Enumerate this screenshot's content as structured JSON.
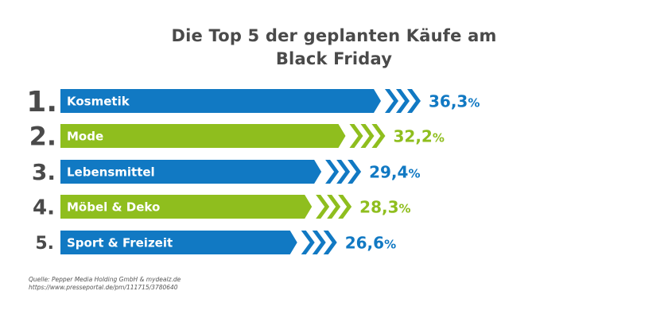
{
  "title_line1": "Die Top 5 der geplanten Käufe am",
  "title_line2": "Black Friday",
  "chart_data": {
    "type": "bar",
    "orientation": "horizontal",
    "title": "Die Top 5 der geplanten Käufe am Black Friday",
    "categories": [
      "Kosmetik",
      "Mode",
      "Lebensmittel",
      "Möbel & Deko",
      "Sport & Freizeit"
    ],
    "ranks": [
      "1.",
      "2.",
      "3.",
      "4.",
      "5."
    ],
    "values": [
      36.3,
      32.2,
      29.4,
      28.3,
      26.6
    ],
    "value_labels": [
      "36,3",
      "32,2",
      "29,4",
      "28,3",
      "26,6"
    ],
    "unit": "%",
    "colors": [
      "#1179c3",
      "#8fbe1e",
      "#1179c3",
      "#8fbe1e",
      "#1179c3"
    ],
    "rank_color": "#4a4a4a"
  },
  "source": {
    "line1": "Quelle: Pepper Media Holding GmbH & mydealz.de",
    "line2": "https://www.presseportal.de/pm/111715/3780640"
  }
}
